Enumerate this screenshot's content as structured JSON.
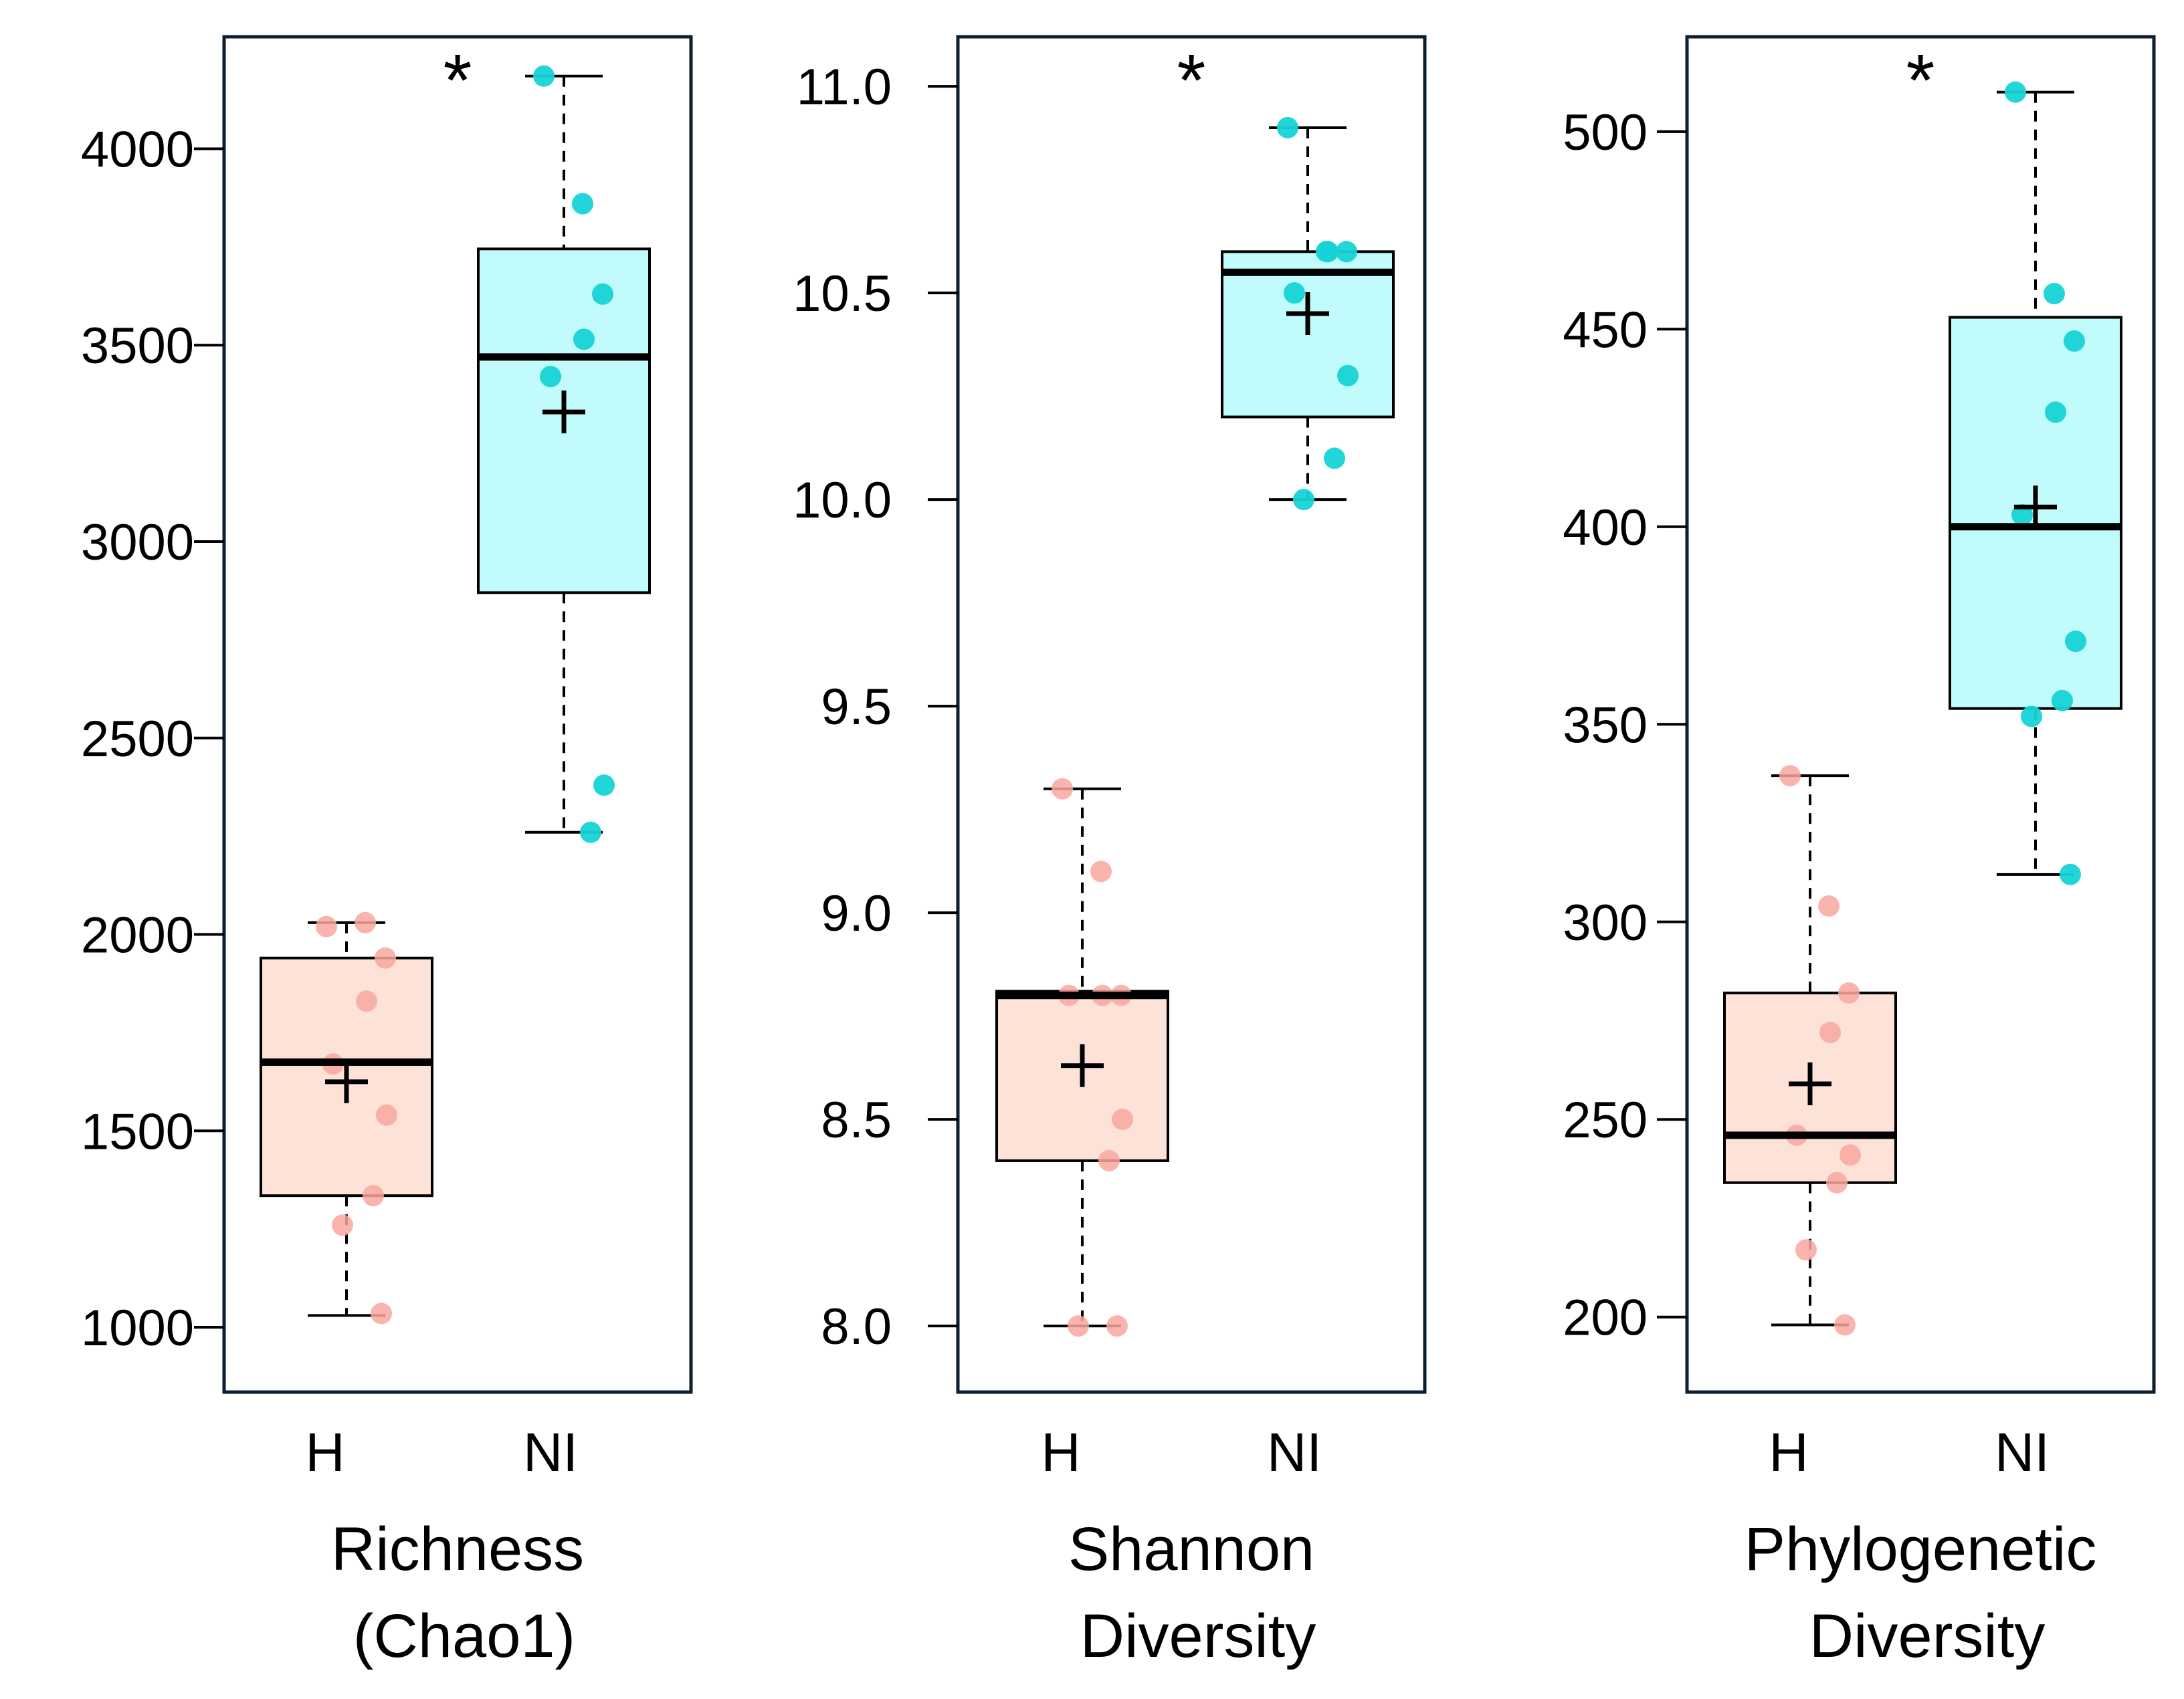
{
  "chart_data": [
    {
      "type": "box",
      "title_lines": [
        "Richness",
        "(Chao1)"
      ],
      "categories": [
        "H",
        "NI"
      ],
      "ylim": [
        835,
        4285
      ],
      "yticks": [
        1000,
        1500,
        2000,
        2500,
        3000,
        3500,
        4000
      ],
      "ytick_labels": [
        "1000",
        "1500",
        "2000",
        "2500",
        "3000",
        "3500",
        "4000"
      ],
      "significance": "*",
      "groups": [
        {
          "name": "H",
          "whisker_low": 1030,
          "q1": 1335,
          "median": 1675,
          "q3": 1940,
          "whisker_high": 2030,
          "mean": 1625,
          "points": [
            2020,
            2030,
            1940,
            1830,
            1670,
            1540,
            1335,
            1260,
            1035
          ]
        },
        {
          "name": "NI",
          "whisker_low": 2260,
          "q1": 2870,
          "median": 3470,
          "q3": 3745,
          "whisker_high": 4185,
          "mean": 3330,
          "points": [
            4185,
            3860,
            3630,
            3515,
            3420,
            2380,
            2260
          ]
        }
      ]
    },
    {
      "type": "box",
      "title_lines": [
        "Shannon",
        "Diversity"
      ],
      "categories": [
        "H",
        "NI"
      ],
      "ylim": [
        7.84,
        11.12
      ],
      "yticks": [
        8.0,
        8.5,
        9.0,
        9.5,
        10.0,
        10.5,
        11.0
      ],
      "ytick_labels": [
        "8.0",
        "8.5",
        "9.0",
        "9.5",
        "10.0",
        "10.5",
        "11.0"
      ],
      "significance": "*",
      "groups": [
        {
          "name": "H",
          "whisker_low": 8.0,
          "q1": 8.4,
          "median": 8.8,
          "q3": 8.81,
          "whisker_high": 9.3,
          "mean": 8.63,
          "points": [
            9.3,
            9.1,
            8.8,
            8.8,
            8.8,
            8.5,
            8.4,
            8.0,
            8.0
          ]
        },
        {
          "name": "NI",
          "whisker_low": 10.0,
          "q1": 10.2,
          "median": 10.55,
          "q3": 10.6,
          "whisker_high": 10.9,
          "mean": 10.45,
          "points": [
            10.9,
            10.6,
            10.6,
            10.6,
            10.5,
            10.3,
            10.1,
            10.0
          ]
        }
      ]
    },
    {
      "type": "box",
      "title_lines": [
        "Phylogenetic",
        "Diversity"
      ],
      "categories": [
        "H",
        "NI"
      ],
      "ylim": [
        181,
        524
      ],
      "yticks": [
        200,
        250,
        300,
        350,
        400,
        450,
        500
      ],
      "ytick_labels": [
        "200",
        "250",
        "300",
        "350",
        "400",
        "450",
        "500"
      ],
      "significance": "*",
      "groups": [
        {
          "name": "H",
          "whisker_low": 198,
          "q1": 234,
          "median": 246,
          "q3": 282,
          "whisker_high": 337,
          "mean": 259,
          "points": [
            337,
            304,
            282,
            272,
            246,
            241,
            234,
            217,
            198
          ]
        },
        {
          "name": "NI",
          "whisker_low": 312,
          "q1": 354,
          "median": 400,
          "q3": 453,
          "whisker_high": 510,
          "mean": 405,
          "points": [
            510,
            459,
            447,
            429,
            403,
            371,
            356,
            352,
            312
          ]
        }
      ]
    }
  ],
  "colors": {
    "frame": "#0b1f33",
    "h_fill": "#fde2d7",
    "h_point": "#f8a7a0",
    "ni_fill": "#c2fbfb",
    "ni_point": "#16d3d6",
    "line": "#000000"
  }
}
